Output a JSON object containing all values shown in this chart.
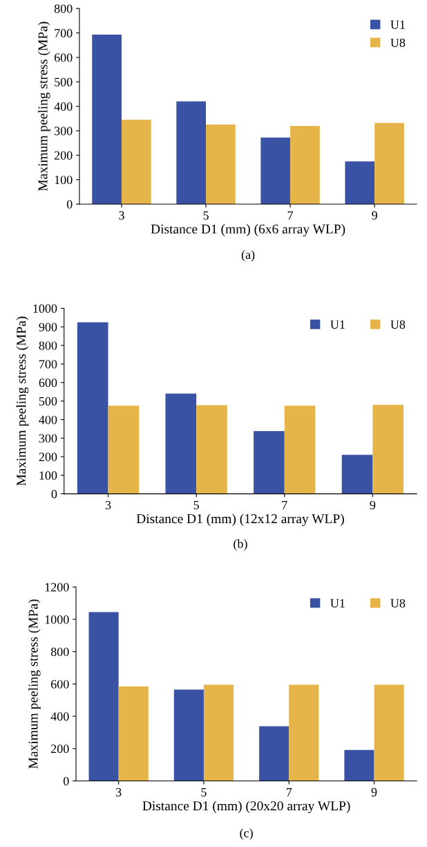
{
  "chart_data": [
    {
      "type": "bar",
      "categories": [
        "3",
        "5",
        "7",
        "9"
      ],
      "xlabel": "Distance D1 (mm) (6x6 array WLP)",
      "ylabel": "Maximum peeling stress (MPa)",
      "ylim": [
        0,
        800
      ],
      "yticks": [
        0,
        100,
        200,
        300,
        400,
        500,
        600,
        700,
        800
      ],
      "legend": "top right",
      "grid": false,
      "annotations": [
        "(a)"
      ],
      "series": [
        {
          "name": "U1",
          "color": "#3a52a3",
          "values": [
            693,
            420,
            272,
            175
          ]
        },
        {
          "name": "U8",
          "color": "#e6b54a",
          "values": [
            345,
            325,
            320,
            332
          ]
        }
      ]
    },
    {
      "type": "bar",
      "categories": [
        "3",
        "5",
        "7",
        "9"
      ],
      "xlabel": "Distance D1 (mm) (12x12 array WLP)",
      "ylabel": "Maximum peeling stress (MPa)",
      "ylim": [
        0,
        1000
      ],
      "yticks": [
        0,
        100,
        200,
        300,
        400,
        500,
        600,
        700,
        800,
        900,
        1000
      ],
      "legend": "top right",
      "grid": false,
      "annotations": [
        "(b)"
      ],
      "series": [
        {
          "name": "U1",
          "color": "#3a52a3",
          "values": [
            925,
            540,
            338,
            210
          ]
        },
        {
          "name": "U8",
          "color": "#e6b54a",
          "values": [
            475,
            478,
            475,
            480
          ]
        }
      ]
    },
    {
      "type": "bar",
      "categories": [
        "3",
        "5",
        "7",
        "9"
      ],
      "xlabel": "Distance D1 (mm) (20x20 array WLP)",
      "ylabel": "Maximum peeling stress (MPa)",
      "ylim": [
        0,
        1200
      ],
      "yticks": [
        0,
        200,
        400,
        600,
        800,
        1000,
        1200
      ],
      "legend": "top right",
      "grid": false,
      "annotations": [
        "(c)"
      ],
      "series": [
        {
          "name": "U1",
          "color": "#3a52a3",
          "values": [
            1045,
            565,
            338,
            192
          ]
        },
        {
          "name": "U8",
          "color": "#e6b54a",
          "values": [
            585,
            595,
            595,
            595
          ]
        }
      ]
    }
  ]
}
